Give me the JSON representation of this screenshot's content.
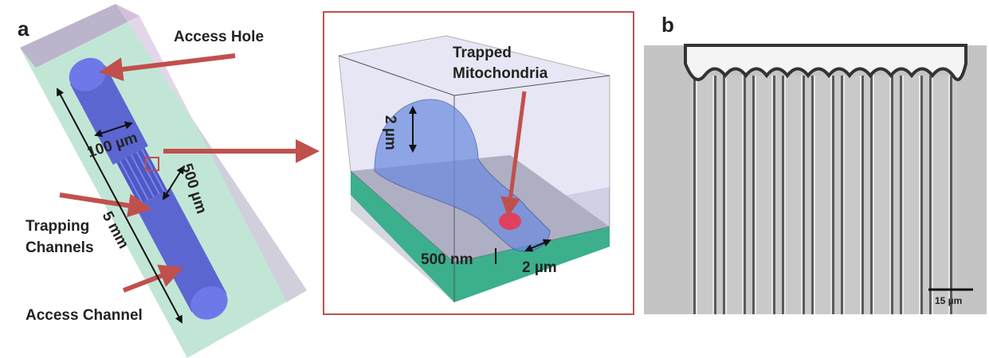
{
  "panel_a": {
    "label": "a",
    "access_hole": "Access Hole",
    "width": "100 µm",
    "channel_length": "500 µm",
    "trapping_channels": [
      "Trapping",
      "Channels"
    ],
    "device_length": "5 mm",
    "access_channel": "Access Channel"
  },
  "inset": {
    "trapped_mitochondria": [
      "Trapped",
      "Mitochondria"
    ],
    "height": "2 µm",
    "depth": "500 nm",
    "width": "2 µm"
  },
  "panel_b": {
    "label": "b",
    "scale_bar": "15 µm"
  }
}
